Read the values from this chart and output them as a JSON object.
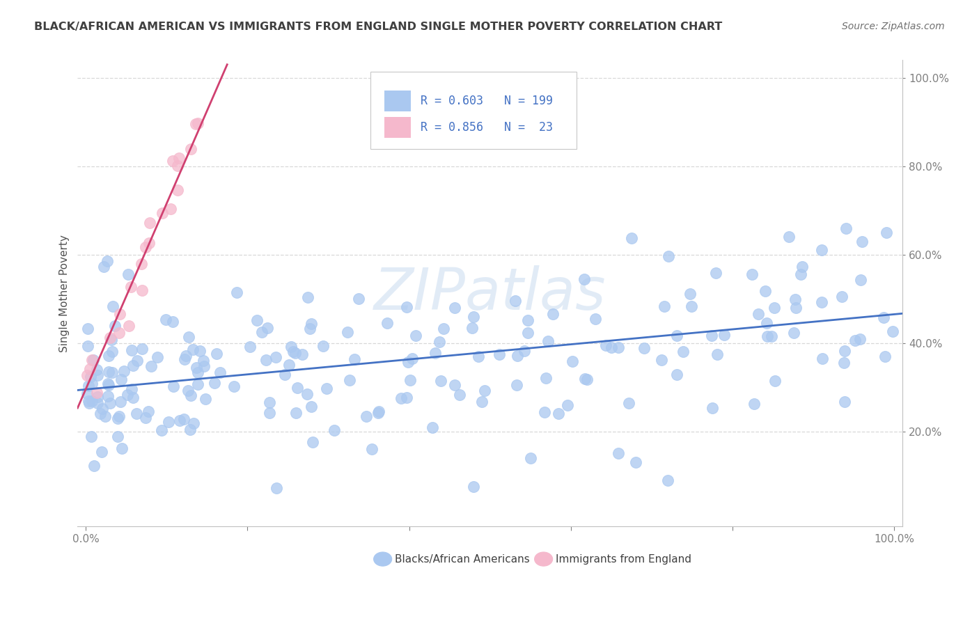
{
  "title": "BLACK/AFRICAN AMERICAN VS IMMIGRANTS FROM ENGLAND SINGLE MOTHER POVERTY CORRELATION CHART",
  "source": "Source: ZipAtlas.com",
  "ylabel": "Single Mother Poverty",
  "blue_color": "#aac8f0",
  "blue_line_color": "#4472c4",
  "pink_color": "#f5b8cc",
  "pink_line_color": "#d04070",
  "blue_R": 0.603,
  "blue_N": 199,
  "pink_R": 0.856,
  "pink_N": 23,
  "blue_label": "Blacks/African Americans",
  "pink_label": "Immigrants from England",
  "watermark": "ZIPatlas",
  "background_color": "#ffffff",
  "grid_color": "#d8d8d8",
  "title_color": "#404040",
  "legend_text_color": "#4472c4",
  "blue_slope": 0.17,
  "blue_intercept": 0.295,
  "pink_slope": 4.2,
  "pink_intercept": 0.295
}
